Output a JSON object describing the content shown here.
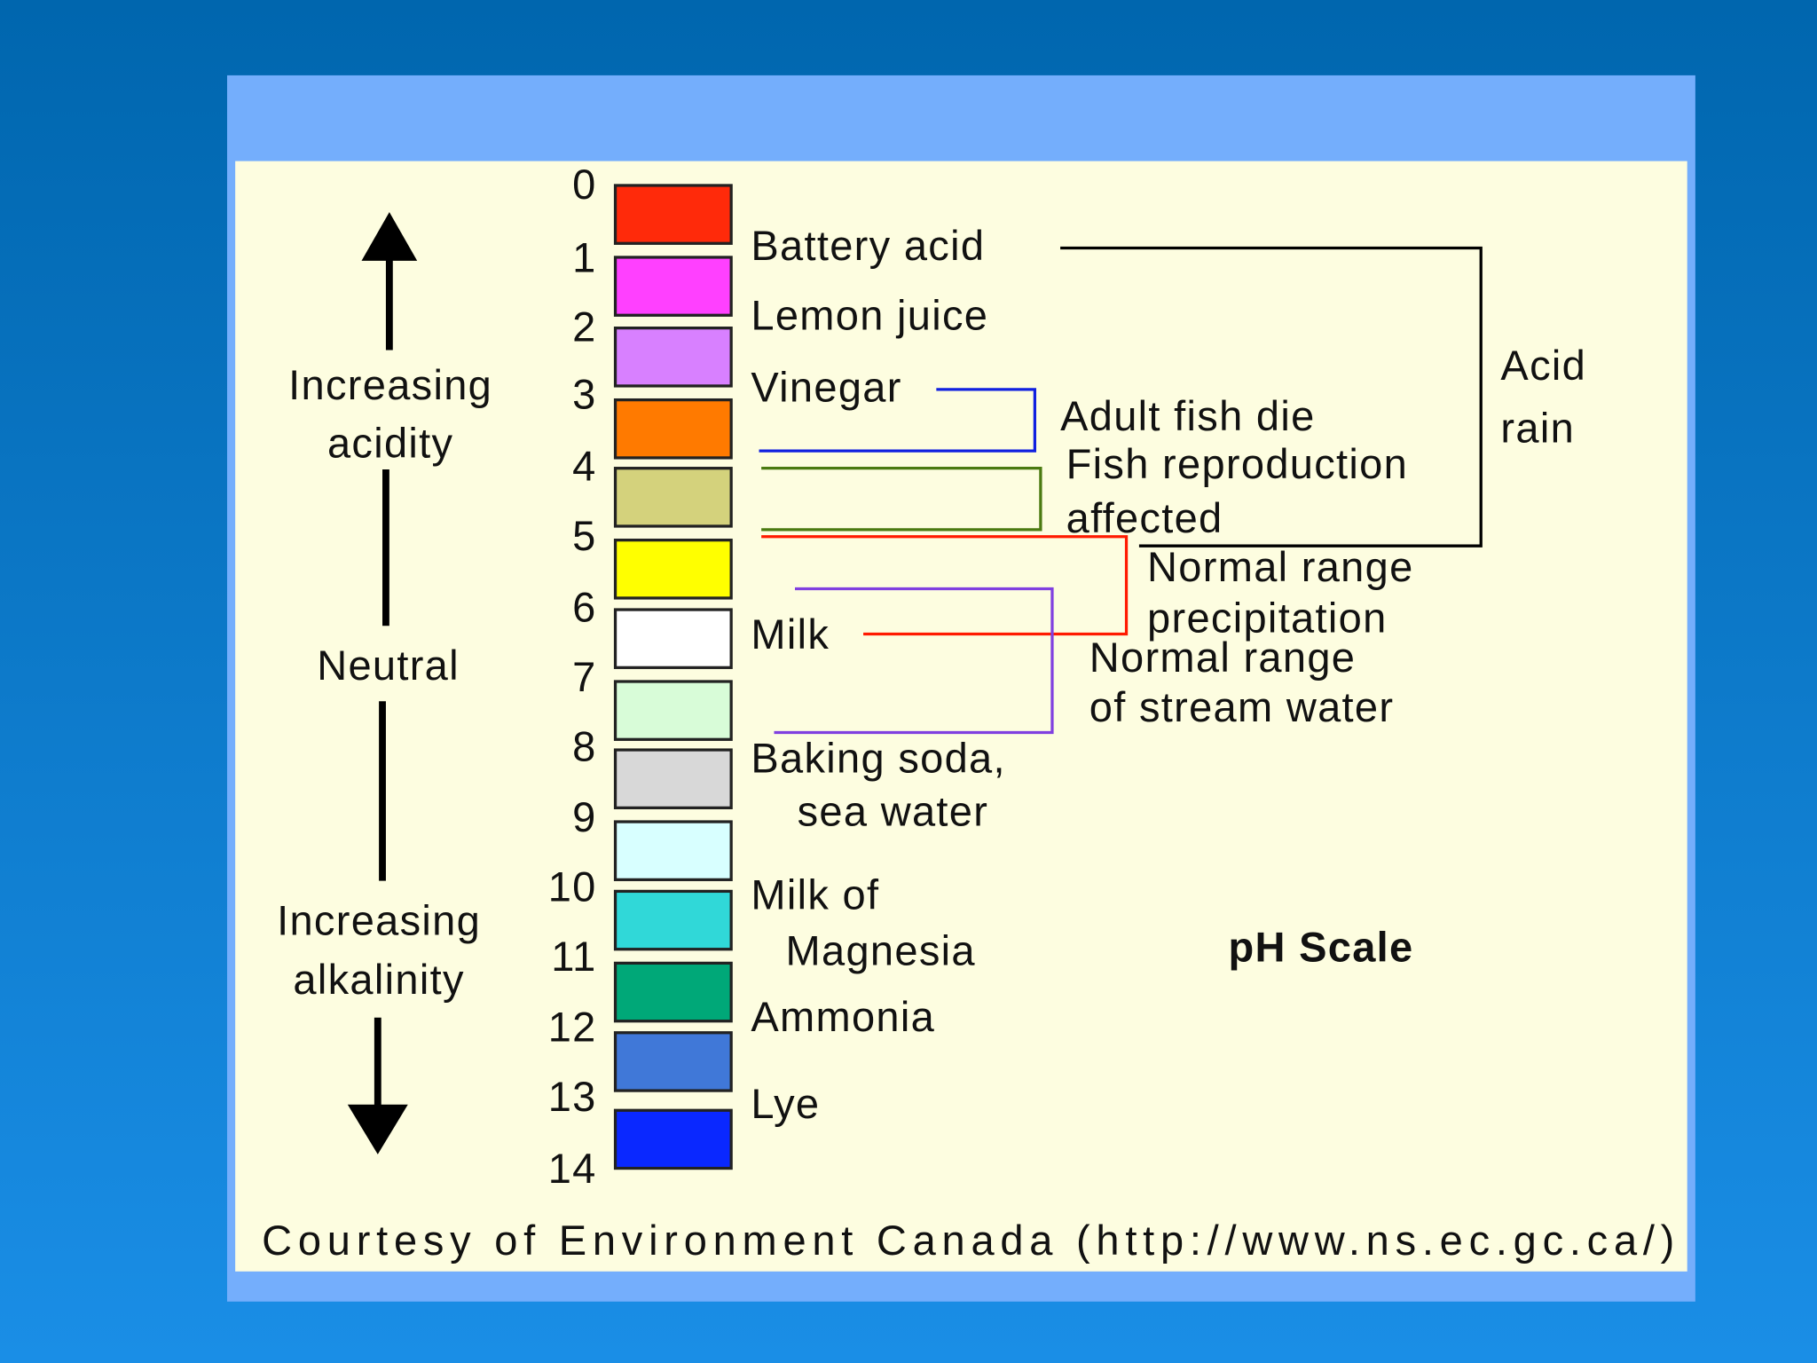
{
  "title": "pH Scale",
  "left_labels": {
    "acidity": [
      "Increasing",
      "acidity"
    ],
    "neutral": "Neutral",
    "alkalinity": [
      "Increasing",
      "alkalinity"
    ]
  },
  "scale": {
    "numbers": [
      0,
      1,
      2,
      3,
      4,
      5,
      6,
      7,
      8,
      9,
      10,
      11,
      12,
      13,
      14
    ],
    "colors": [
      "#ff2a0a",
      "#ff40ff",
      "#d880ff",
      "#ff7a00",
      "#d4d27c",
      "#ffff00",
      "#ffffff",
      "#d8fcd8",
      "#d8d8d8",
      "#d8ffff",
      "#30d8d8",
      "#00a878",
      "#4078d8",
      "#0a28ff"
    ]
  },
  "substances": [
    [
      "Battery acid"
    ],
    [
      "Lemon juice"
    ],
    [
      "Vinegar"
    ],
    [
      "Milk"
    ],
    [
      "Baking soda,",
      "sea water"
    ],
    [
      "Milk of",
      "Magnesia"
    ],
    [
      "Ammonia"
    ],
    [
      "Lye"
    ]
  ],
  "ranges": {
    "acid_rain": [
      "Acid",
      "rain"
    ],
    "adult_fish": [
      "Adult fish die"
    ],
    "fish_reproduction": [
      "Fish reproduction",
      "affected"
    ],
    "precipitation": [
      "Normal range",
      "precipitation"
    ],
    "stream_water": [
      "Normal range",
      "of stream water"
    ]
  },
  "credit": "Courtesy of Environment Canada (http://www.ns.ec.gc.ca/)"
}
